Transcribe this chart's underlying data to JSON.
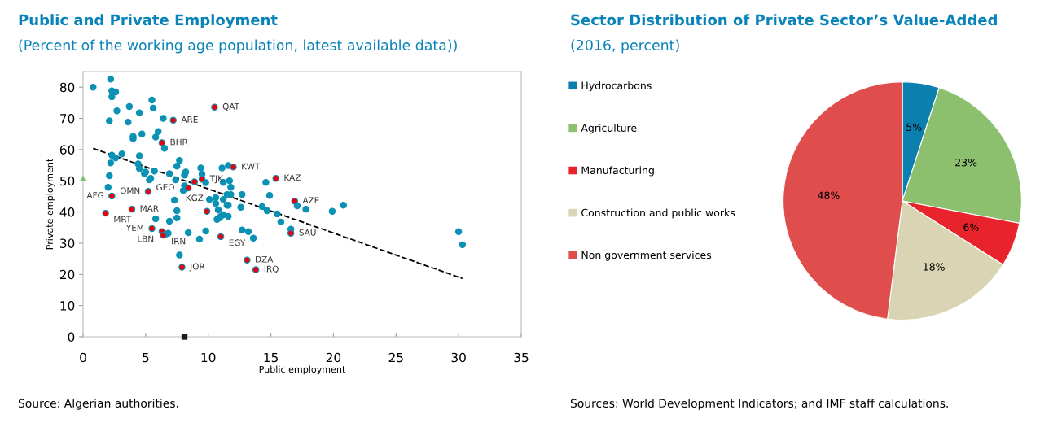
{
  "chart_data": [
    {
      "type": "scatter",
      "title": "Public and Private Employment",
      "subtitle": "(Percent of the working age population, latest available data))",
      "xlabel": "Public employment",
      "ylabel": "Private employment",
      "xlim": [
        0,
        35
      ],
      "xticks": [
        0,
        5,
        10,
        15,
        20,
        25,
        30,
        35
      ],
      "ylim": [
        0,
        85
      ],
      "yticks": [
        0,
        10,
        20,
        30,
        40,
        50,
        60,
        70,
        80
      ],
      "grid": false,
      "legend": false,
      "series": [
        {
          "color": "#0a91b4",
          "marker": "circle",
          "x": [
            0.8,
            2.2,
            2.3,
            2.6,
            2.3,
            5.5,
            5.6,
            3.7,
            2.7,
            4.5,
            2.1,
            3.6,
            6.4,
            6.0,
            5.8,
            4.0,
            4.0,
            4.7,
            6.5,
            3.1,
            2.3,
            2.6,
            2.2,
            4.5,
            4.4,
            4.5,
            4.9,
            5.0,
            5.7,
            5.4,
            5.3,
            2.1,
            2.0,
            6.9,
            7.7,
            7.5,
            7.4,
            8.1,
            8.2,
            8.0,
            8.1,
            7.3,
            9.4,
            9.5,
            9.8,
            11.2,
            11.1,
            11.6,
            11.7,
            11.8,
            12.7,
            11.5,
            11.8,
            10.1,
            10.6,
            11.2,
            11.6,
            12.6,
            10.8,
            14.6,
            14.9,
            14.3,
            14.7,
            15.5,
            7.5,
            5.8,
            6.9,
            7.5,
            9.8,
            9.3,
            8.4,
            6.8,
            6.6,
            7.7,
            11.0,
            11.2,
            10.7,
            10.9,
            11.6,
            10.6,
            11.5,
            12.7,
            13.2,
            13.6,
            15.8,
            16.6,
            17.1,
            17.8,
            19.9,
            20.8,
            30.0,
            30.3
          ],
          "values": [
            80.0,
            82.6,
            78.8,
            78.5,
            76.9,
            75.9,
            73.3,
            73.8,
            72.4,
            71.8,
            69.2,
            68.8,
            70.0,
            65.8,
            64.0,
            64.2,
            63.5,
            65.0,
            60.4,
            58.6,
            58.2,
            57.3,
            55.7,
            58.0,
            55.4,
            53.9,
            52.3,
            52.8,
            53.1,
            50.8,
            50.3,
            51.6,
            47.9,
            52.3,
            56.5,
            54.7,
            50.3,
            51.8,
            52.8,
            46.9,
            48.4,
            43.8,
            54.1,
            52.1,
            49.4,
            49.5,
            54.1,
            54.9,
            50.0,
            47.9,
            45.6,
            45.6,
            45.6,
            44.0,
            44.6,
            44.0,
            42.2,
            41.5,
            40.7,
            49.5,
            45.3,
            41.7,
            40.4,
            39.4,
            40.4,
            37.8,
            37.0,
            38.1,
            33.9,
            31.3,
            33.4,
            33.2,
            32.9,
            26.2,
            38.6,
            39.1,
            37.6,
            38.1,
            38.6,
            42.7,
            42.2,
            34.2,
            33.7,
            31.6,
            36.8,
            34.5,
            42.0,
            40.9,
            40.2,
            42.2,
            33.7,
            29.5
          ]
        },
        {
          "color": "#e8000b",
          "marker": "circle",
          "x": [
            10.5,
            7.2,
            6.3,
            12.0,
            15.4,
            16.9,
            16.6,
            13.1,
            13.8,
            7.9,
            11.0,
            9.5,
            8.9,
            8.4,
            5.2,
            2.3,
            3.9,
            1.8,
            5.5,
            6.3,
            6.4,
            9.9
          ],
          "values": [
            73.6,
            69.4,
            62.2,
            54.4,
            50.8,
            43.5,
            33.2,
            24.6,
            21.5,
            22.3,
            32.1,
            50.5,
            49.7,
            47.7,
            46.6,
            45.1,
            40.9,
            39.6,
            34.7,
            33.7,
            32.6,
            40.2
          ]
        },
        {
          "type": "line",
          "color": "#000000",
          "line_style": "dashed",
          "marker": "none",
          "x": [
            0.8,
            30.3
          ],
          "values": [
            60.4,
            18.7
          ]
        },
        {
          "color": "#7cc07a",
          "marker": "triangle",
          "x": [
            0
          ],
          "values": [
            50.8
          ]
        },
        {
          "color": "#1a1a1a",
          "marker": "square",
          "x": [
            8.1
          ],
          "values": [
            0
          ]
        }
      ],
      "annotations": [
        {
          "text": "QAT",
          "x": 10.5,
          "y": 73.6
        },
        {
          "text": "ARE",
          "x": 7.2,
          "y": 69.4
        },
        {
          "text": "BHR",
          "x": 6.3,
          "y": 62.2
        },
        {
          "text": "KWT",
          "x": 12.0,
          "y": 54.4
        },
        {
          "text": "KAZ",
          "x": 15.4,
          "y": 50.8
        },
        {
          "text": "AZE",
          "x": 16.9,
          "y": 43.5
        },
        {
          "text": "SAU",
          "x": 16.6,
          "y": 33.2
        },
        {
          "text": "DZA",
          "x": 13.1,
          "y": 24.6
        },
        {
          "text": "IRQ",
          "x": 13.8,
          "y": 21.5
        },
        {
          "text": "JOR",
          "x": 7.9,
          "y": 22.3
        },
        {
          "text": "EGY",
          "x": 11.0,
          "y": 32.1
        },
        {
          "text": "TJK",
          "x": 9.5,
          "y": 50.5
        },
        {
          "text": "KGZ",
          "x": 8.9,
          "y": 49.7
        },
        {
          "text": "GEO",
          "x": 8.4,
          "y": 47.7
        },
        {
          "text": "OMN",
          "x": 5.2,
          "y": 46.6
        },
        {
          "text": "AFG",
          "x": 2.3,
          "y": 45.1
        },
        {
          "text": "MAR",
          "x": 3.9,
          "y": 40.9
        },
        {
          "text": "MRT",
          "x": 1.8,
          "y": 39.6
        },
        {
          "text": "YEM",
          "x": 5.5,
          "y": 34.7
        },
        {
          "text": "LBN",
          "x": 6.3,
          "y": 33.7
        },
        {
          "text": "IRN",
          "x": 6.4,
          "y": 32.6
        },
        "Source: Algerian authorities."
      ]
    },
    {
      "type": "pie",
      "title": "Sector Distribution of Private Sector’s Value-Added",
      "subtitle": "(2016, percent)",
      "categories": [
        "Hydrocarbons",
        "Agriculture",
        "Manufacturing",
        "Construction and public works",
        "Non government services"
      ],
      "values": [
        5,
        23,
        6,
        18,
        48
      ],
      "colors": [
        "#0b7fae",
        "#8cc06e",
        "#e8232b",
        "#d9d4b4",
        "#e04d4d"
      ],
      "value_labels": [
        "5%",
        "23%",
        "6%",
        "18%",
        "48%"
      ],
      "legend": "left",
      "annotations": [
        "Sources: World Development Indicators; and IMF staff calculations."
      ]
    }
  ]
}
